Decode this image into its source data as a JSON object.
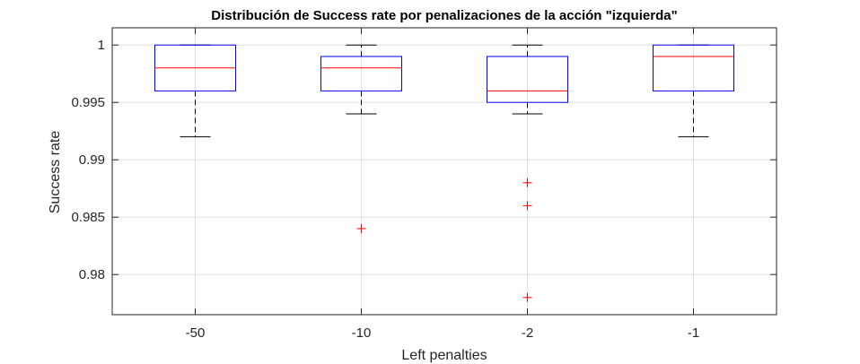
{
  "chart_data": {
    "type": "boxplot",
    "title": "Distribución de Success rate por penalizaciones de la acción \"izquierda\"",
    "xlabel": "Left penalties",
    "ylabel": "Success rate",
    "ylim": [
      0.9765,
      1.0015
    ],
    "yticks": [
      0.98,
      0.985,
      0.99,
      0.995,
      1
    ],
    "ytick_labels": [
      "0.98",
      "0.985",
      "0.99",
      "0.995",
      "1"
    ],
    "grid": true,
    "categories": [
      "-50",
      "-10",
      "-2",
      "-1"
    ],
    "boxes": [
      {
        "category": "-50",
        "whisker_low": 0.992,
        "q1": 0.996,
        "median": 0.998,
        "q3": 1.0,
        "whisker_high": 1.0,
        "outliers": []
      },
      {
        "category": "-10",
        "whisker_low": 0.994,
        "q1": 0.996,
        "median": 0.998,
        "q3": 0.999,
        "whisker_high": 1.0,
        "outliers": [
          0.984
        ]
      },
      {
        "category": "-2",
        "whisker_low": 0.994,
        "q1": 0.995,
        "median": 0.996,
        "q3": 0.999,
        "whisker_high": 1.0,
        "outliers": [
          0.988,
          0.986,
          0.978
        ]
      },
      {
        "category": "-1",
        "whisker_low": 0.992,
        "q1": 0.996,
        "median": 0.999,
        "q3": 1.0,
        "whisker_high": 1.0,
        "outliers": []
      }
    ],
    "colors": {
      "box": "#0000ff",
      "median": "#ff0000",
      "whisker": "#000000",
      "outlier": "#ff0000",
      "grid": "#dfdfdf",
      "axis": "#262626"
    }
  }
}
